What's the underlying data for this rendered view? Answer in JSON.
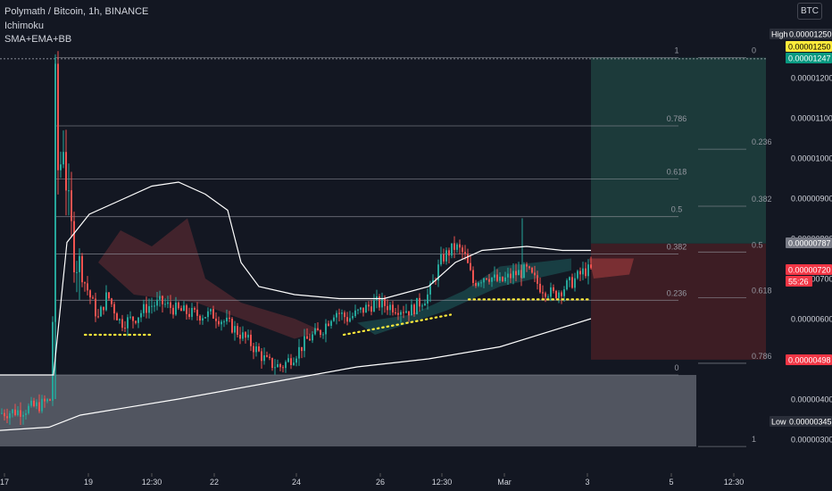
{
  "legend": {
    "symbol": "Polymath / Bitcoin, 1h, BINANCE",
    "indicator1": "Ichimoku",
    "indicator2": "SMA+EMA+BB"
  },
  "currency_button": "BTC",
  "price_labels": {
    "high_prefix": "High",
    "high": "0.00001250",
    "yellow": "0.00001250",
    "green": "0.00001247",
    "gray": "0.00000787",
    "red": "0.00000720",
    "countdown": "55:26",
    "red2": "0.00000498",
    "low_prefix": "Low",
    "low": "0.00000345"
  },
  "colors": {
    "background": "#131722",
    "up": "#26a69a",
    "down": "#ef5350",
    "target_zone": "#1c3a3a",
    "stop_zone": "#3d1d24",
    "range_box": "#5d606b",
    "axis_text": "#d1d4dc"
  },
  "chart_data": {
    "type": "candlestick",
    "symbol": "Polymath / Bitcoin, 1h, BINANCE",
    "y_axis": {
      "ticks": [
        "0.00001200",
        "0.00001100",
        "0.00001000",
        "0.00000900",
        "0.00000800",
        "0.00000700",
        "0.00000600",
        "0.00000500",
        "0.00000400",
        "0.00000300"
      ],
      "range": [
        2.6e-06,
        1.34e-05
      ]
    },
    "x_axis": {
      "ticks": [
        "17",
        "19",
        "12:30",
        "22",
        "24",
        "26",
        "12:30",
        "Mar",
        "3",
        "5",
        "12:30"
      ]
    },
    "fib_levels_left": [
      {
        "label": "1",
        "value": 1.25e-05
      },
      {
        "label": "0.786",
        "value": 1.08e-05
      },
      {
        "label": "0.618",
        "value": 9.48e-06
      },
      {
        "label": "0.5",
        "value": 8.54e-06
      },
      {
        "label": "0.382",
        "value": 7.61e-06
      },
      {
        "label": "0.236",
        "value": 6.46e-06
      },
      {
        "label": "0",
        "value": 4.6e-06
      }
    ],
    "fib_levels_right": [
      {
        "label": "0",
        "value": 1.25e-05
      },
      {
        "label": "0.236",
        "value": 1.022e-05
      },
      {
        "label": "0.382",
        "value": 8.8e-06
      },
      {
        "label": "0.5",
        "value": 7.66e-06
      },
      {
        "label": "0.618",
        "value": 6.52e-06
      },
      {
        "label": "0.786",
        "value": 4.89e-06
      },
      {
        "label": "1",
        "value": 2.82e-06
      }
    ],
    "series": [
      {
        "name": "price",
        "points": [
          [
            0,
            3.65e-06
          ],
          [
            20,
            3.7e-06
          ],
          [
            45,
            3.85e-06
          ],
          [
            58,
            4e-06
          ],
          [
            62,
            1.18e-05
          ],
          [
            66,
            9e-06
          ],
          [
            70,
            1.08e-05
          ],
          [
            76,
            8.8e-06
          ],
          [
            82,
            7.8e-06
          ],
          [
            90,
            7.2e-06
          ],
          [
            100,
            6.6e-06
          ],
          [
            110,
            6e-06
          ],
          [
            120,
            6.6e-06
          ],
          [
            135,
            5.9e-06
          ],
          [
            150,
            6e-06
          ],
          [
            165,
            6.3e-06
          ],
          [
            180,
            6.4e-06
          ],
          [
            200,
            6.2e-06
          ],
          [
            220,
            6.1e-06
          ],
          [
            240,
            6.1e-06
          ],
          [
            260,
            5.8e-06
          ],
          [
            280,
            5.4e-06
          ],
          [
            300,
            4.9e-06
          ],
          [
            315,
            4.8e-06
          ],
          [
            330,
            5.1e-06
          ],
          [
            345,
            5.5e-06
          ],
          [
            360,
            5.7e-06
          ],
          [
            375,
            6.2e-06
          ],
          [
            390,
            6e-06
          ],
          [
            405,
            6.2e-06
          ],
          [
            420,
            6.4e-06
          ],
          [
            440,
            6.3e-06
          ],
          [
            460,
            6.2e-06
          ],
          [
            480,
            6.6e-06
          ],
          [
            495,
            7.5e-06
          ],
          [
            510,
            7.8e-06
          ],
          [
            520,
            7.6e-06
          ],
          [
            530,
            6.9e-06
          ],
          [
            545,
            7.1e-06
          ],
          [
            560,
            6.9e-06
          ],
          [
            575,
            7.1e-06
          ],
          [
            590,
            7.2e-06
          ],
          [
            605,
            6.8e-06
          ],
          [
            620,
            6.6e-06
          ],
          [
            640,
            6.9e-06
          ],
          [
            655,
            7.2e-06
          ],
          [
            662,
            7.2e-06
          ]
        ]
      },
      {
        "name": "bb_upper",
        "points": [
          [
            0,
            4.6e-06
          ],
          [
            40,
            4.6e-06
          ],
          [
            60,
            4.6e-06
          ],
          [
            75,
            7.9e-06
          ],
          [
            100,
            8.6e-06
          ],
          [
            130,
            8.9e-06
          ],
          [
            170,
            9.3e-06
          ],
          [
            200,
            9.4e-06
          ],
          [
            230,
            9.1e-06
          ],
          [
            255,
            8.7e-06
          ],
          [
            270,
            7.4e-06
          ],
          [
            290,
            6.8e-06
          ],
          [
            330,
            6.6e-06
          ],
          [
            380,
            6.5e-06
          ],
          [
            430,
            6.5e-06
          ],
          [
            480,
            6.8e-06
          ],
          [
            510,
            7.4e-06
          ],
          [
            540,
            7.7e-06
          ],
          [
            590,
            7.8e-06
          ],
          [
            630,
            7.7e-06
          ],
          [
            662,
            7.7e-06
          ]
        ]
      },
      {
        "name": "sma_long",
        "points": [
          [
            0,
            3.22e-06
          ],
          [
            55,
            3.3e-06
          ],
          [
            90,
            3.6e-06
          ],
          [
            200,
            4e-06
          ],
          [
            300,
            4.4e-06
          ],
          [
            400,
            4.8e-06
          ],
          [
            480,
            5e-06
          ],
          [
            560,
            5.3e-06
          ],
          [
            662,
            6e-06
          ]
        ]
      }
    ],
    "annotations": [
      {
        "type": "dotted-support",
        "from": [
          95,
          5.6e-06
        ],
        "to": [
          170,
          5.6e-06
        ]
      },
      {
        "type": "dotted-support",
        "from": [
          385,
          5.6e-06
        ],
        "to": [
          505,
          6.1e-06
        ]
      },
      {
        "type": "dotted-support",
        "from": [
          525,
          6.48e-06
        ],
        "to": [
          660,
          6.48e-06
        ]
      }
    ]
  }
}
